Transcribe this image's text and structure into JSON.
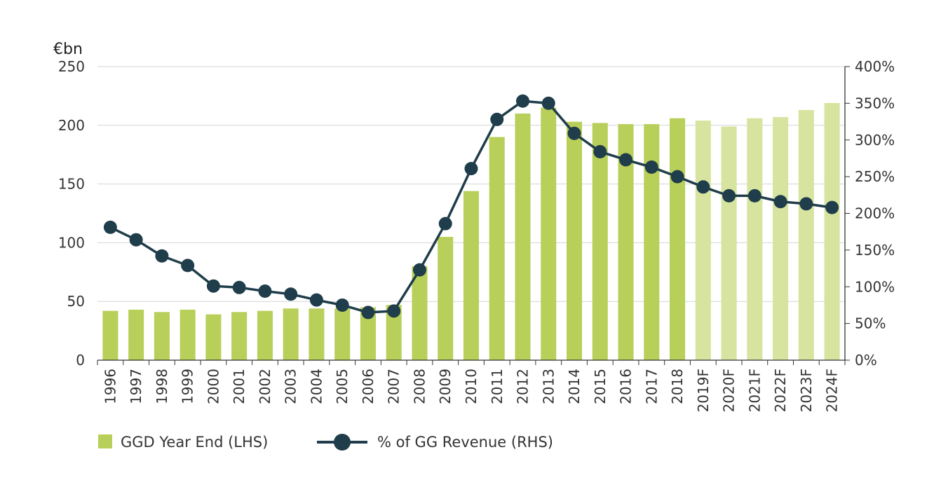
{
  "chart_data": {
    "type": "bar",
    "title": "",
    "y_left_unit": "€bn",
    "ylim_left": [
      0,
      250
    ],
    "yticks_left": [
      "0",
      "50",
      "100",
      "150",
      "200",
      "250"
    ],
    "ylim_right": [
      0,
      400
    ],
    "yticks_right": [
      "0%",
      "50%",
      "100%",
      "150%",
      "200%",
      "250%",
      "300%",
      "350%",
      "400%"
    ],
    "grid": "horizontal",
    "legend_position": "bottom-left",
    "categories": [
      "1996",
      "1997",
      "1998",
      "1999",
      "2000",
      "2001",
      "2002",
      "2003",
      "2004",
      "2005",
      "2006",
      "2007",
      "2008",
      "2009",
      "2010",
      "2011",
      "2012",
      "2013",
      "2014",
      "2015",
      "2016",
      "2017",
      "2018",
      "2019F",
      "2020F",
      "2021F",
      "2022F",
      "2023F",
      "2024F"
    ],
    "series": [
      {
        "name": "GGD Year End (LHS)",
        "kind": "bar",
        "axis": "left",
        "values": [
          42,
          43,
          41,
          43,
          39,
          41,
          42,
          44,
          44,
          44,
          45,
          47,
          80,
          105,
          144,
          190,
          210,
          215,
          203,
          202,
          201,
          201,
          206,
          204,
          199,
          206,
          207,
          213,
          219
        ],
        "forecast_from_index": 23
      },
      {
        "name": "% of GG Revenue (RHS)",
        "kind": "line",
        "axis": "right",
        "values": [
          181,
          164,
          142,
          129,
          101,
          99,
          94,
          90,
          82,
          75,
          65,
          67,
          123,
          186,
          261,
          328,
          353,
          350,
          309,
          284,
          273,
          263,
          250,
          236,
          224,
          224,
          216,
          213,
          208
        ]
      }
    ],
    "colors": {
      "bar": "#b8cf5a",
      "bar_forecast": "#d6e4a0",
      "line": "#1f3d4a",
      "grid": "#d5d5d5",
      "axis": "#333333"
    }
  }
}
